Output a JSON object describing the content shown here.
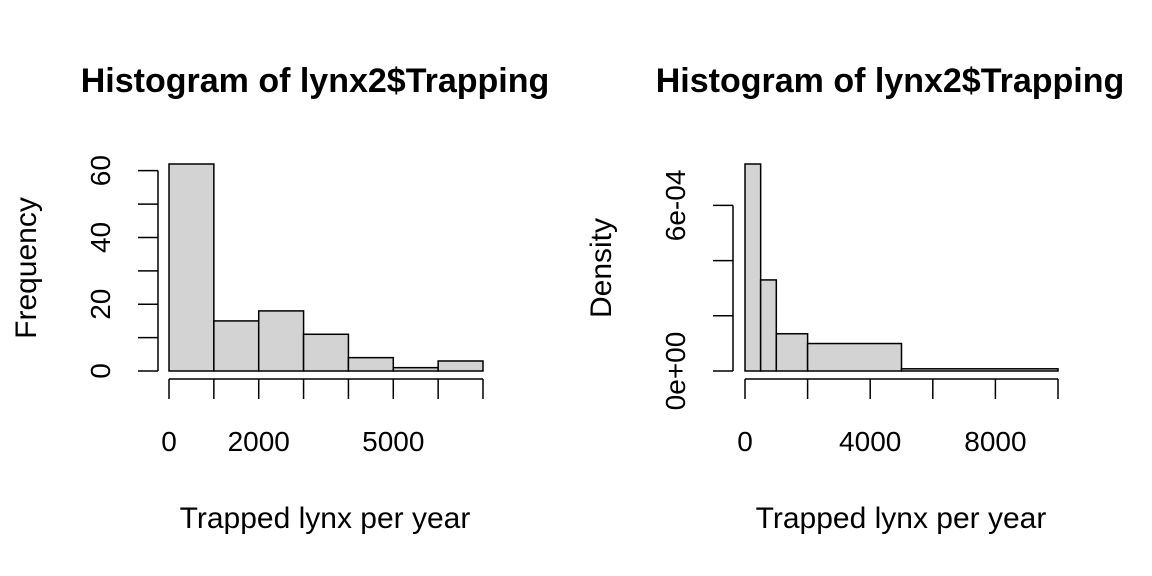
{
  "chart_data": [
    {
      "type": "bar",
      "title": "Histogram of lynx2$Trapping",
      "xlabel": "Trapped lynx per year",
      "ylabel": "Frequency",
      "bins": [
        [
          0,
          1000
        ],
        [
          1000,
          2000
        ],
        [
          2000,
          3000
        ],
        [
          3000,
          4000
        ],
        [
          4000,
          5000
        ],
        [
          5000,
          6000
        ],
        [
          6000,
          7000
        ]
      ],
      "values": [
        62,
        15,
        18,
        11,
        4,
        1,
        3
      ],
      "xlim": [
        0,
        7000
      ],
      "ylim": [
        0,
        62
      ],
      "xticks": [
        0,
        1000,
        2000,
        3000,
        4000,
        5000,
        6000,
        7000
      ],
      "xtick_labels": [
        {
          "value": 0,
          "label": "0"
        },
        {
          "value": 2000,
          "label": "2000"
        },
        {
          "value": 5000,
          "label": "5000"
        }
      ],
      "yticks": [
        0,
        10,
        20,
        30,
        40,
        50,
        60
      ],
      "ytick_labels": [
        {
          "value": 0,
          "label": "0"
        },
        {
          "value": 20,
          "label": "20"
        },
        {
          "value": 40,
          "label": "40"
        },
        {
          "value": 60,
          "label": "60"
        }
      ],
      "bar_color": "#d3d3d3"
    },
    {
      "type": "bar",
      "title": "Histogram of lynx2$Trapping",
      "xlabel": "Trapped lynx per year",
      "ylabel": "Density",
      "bins": [
        [
          0,
          500
        ],
        [
          500,
          1000
        ],
        [
          1000,
          2000
        ],
        [
          2000,
          5000
        ],
        [
          5000,
          10000
        ]
      ],
      "values": [
        0.00075,
        0.00033,
        0.000135,
        9.95e-05,
        8e-06
      ],
      "xlim": [
        0,
        10000
      ],
      "ylim": [
        0,
        0.00075
      ],
      "xticks": [
        0,
        2000,
        4000,
        6000,
        8000,
        10000
      ],
      "xtick_labels": [
        {
          "value": 0,
          "label": "0"
        },
        {
          "value": 4000,
          "label": "4000"
        },
        {
          "value": 8000,
          "label": "8000"
        }
      ],
      "yticks": [
        0,
        0.0002,
        0.0004,
        0.0006
      ],
      "ytick_labels": [
        {
          "value": 0,
          "label": "0e+00"
        },
        {
          "value": 0.0006,
          "label": "6e-04"
        }
      ],
      "bar_color": "#d3d3d3"
    }
  ]
}
